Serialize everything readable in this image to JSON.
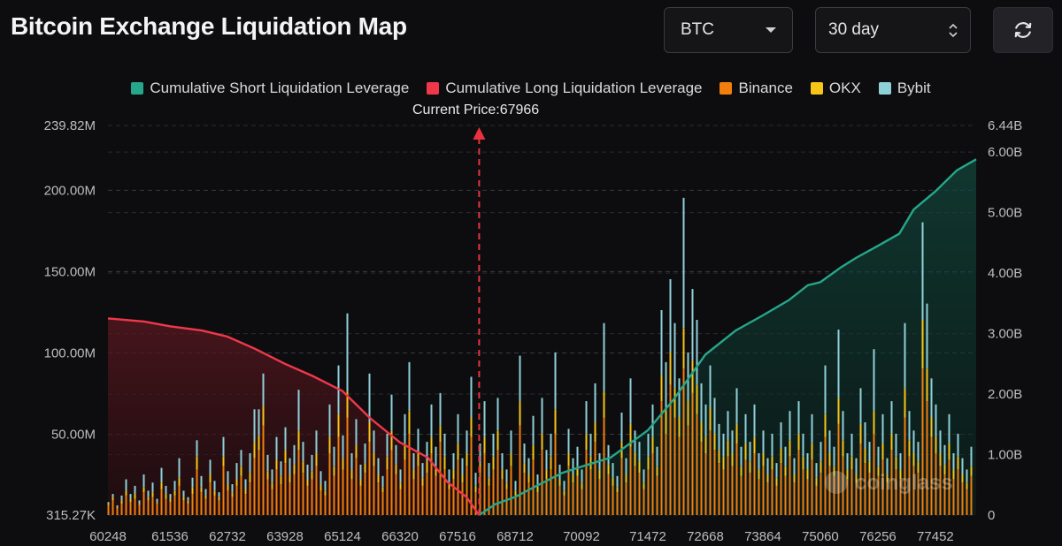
{
  "header": {
    "title": "Bitcoin Exchange Liquidation Map",
    "coin_select": "BTC",
    "period_select": "30 day"
  },
  "colors": {
    "short_cum": "#26a68a",
    "long_cum": "#f0384a",
    "binance": "#f27f0c",
    "okx": "#f5c518",
    "bybit": "#8fd0d8",
    "price_line": "#e8323f",
    "background": "#0d0d0f"
  },
  "chart_data": {
    "type": "bar",
    "title": "Bitcoin Exchange Liquidation Map",
    "current_price": 67966,
    "current_price_label": "Current Price:67966",
    "legend": [
      {
        "name": "Cumulative Short Liquidation Leverage",
        "color_key": "short_cum"
      },
      {
        "name": "Cumulative Long Liquidation Leverage",
        "color_key": "long_cum"
      },
      {
        "name": "Binance",
        "color_key": "binance"
      },
      {
        "name": "OKX",
        "color_key": "okx"
      },
      {
        "name": "Bybit",
        "color_key": "bybit"
      }
    ],
    "x_tick_labels": [
      "60248",
      "61536",
      "62732",
      "63928",
      "65124",
      "66320",
      "67516",
      "68712",
      "70092",
      "71472",
      "72668",
      "73864",
      "75060",
      "76256",
      "77452"
    ],
    "x_range": [
      60248,
      78300
    ],
    "y_left_ticks": [
      "315.27K",
      "50.00M",
      "100.00M",
      "150.00M",
      "200.00M",
      "239.82M"
    ],
    "y_left_values": [
      0.31527,
      50,
      100,
      150,
      200,
      239.82
    ],
    "y_left_range": [
      0.31527,
      239.82
    ],
    "y_left_unit": "M",
    "y_right_ticks": [
      "0",
      "1.00B",
      "2.00B",
      "3.00B",
      "4.00B",
      "5.00B",
      "6.00B",
      "6.44B"
    ],
    "y_right_values": [
      0,
      1,
      2,
      3,
      4,
      5,
      6,
      6.44
    ],
    "y_right_range": [
      0,
      6.44
    ],
    "y_right_unit": "B",
    "long_cumulative_B": [
      [
        60248,
        3.25
      ],
      [
        61000,
        3.2
      ],
      [
        61536,
        3.12
      ],
      [
        62200,
        3.05
      ],
      [
        62732,
        2.95
      ],
      [
        63300,
        2.75
      ],
      [
        63928,
        2.5
      ],
      [
        64500,
        2.3
      ],
      [
        65124,
        2.05
      ],
      [
        65700,
        1.6
      ],
      [
        66320,
        1.2
      ],
      [
        66900,
        0.95
      ],
      [
        67300,
        0.55
      ],
      [
        67700,
        0.3
      ],
      [
        67966,
        0
      ]
    ],
    "short_cumulative_B": [
      [
        67966,
        0
      ],
      [
        68300,
        0.18
      ],
      [
        68712,
        0.3
      ],
      [
        69200,
        0.5
      ],
      [
        69700,
        0.7
      ],
      [
        70092,
        0.8
      ],
      [
        70700,
        0.95
      ],
      [
        71472,
        1.4
      ],
      [
        72000,
        1.9
      ],
      [
        72668,
        2.65
      ],
      [
        73300,
        3.05
      ],
      [
        73864,
        3.3
      ],
      [
        74400,
        3.55
      ],
      [
        74800,
        3.8
      ],
      [
        75060,
        3.85
      ],
      [
        75500,
        4.1
      ],
      [
        75800,
        4.25
      ],
      [
        76256,
        4.45
      ],
      [
        76700,
        4.65
      ],
      [
        77000,
        5.05
      ],
      [
        77452,
        5.35
      ],
      [
        77900,
        5.7
      ],
      [
        78300,
        5.88
      ]
    ],
    "bar_notes": "Per-price stacked liquidation volume (Binance bottom, OKX middle, Bybit top). Heights estimated from image; tallest cluster near 71472 (~195M) and 77000 (~218M).",
    "bar_step": 40,
    "bars_M": [
      [
        6,
        1,
        1
      ],
      [
        9,
        2,
        2
      ],
      [
        4,
        1,
        1
      ],
      [
        7,
        2,
        3
      ],
      [
        12,
        3,
        7
      ],
      [
        8,
        2,
        3
      ],
      [
        10,
        3,
        5
      ],
      [
        6,
        1,
        2
      ],
      [
        14,
        3,
        8
      ],
      [
        9,
        2,
        4
      ],
      [
        11,
        3,
        6
      ],
      [
        7,
        1,
        2
      ],
      [
        16,
        4,
        9
      ],
      [
        10,
        3,
        5
      ],
      [
        8,
        2,
        3
      ],
      [
        12,
        3,
        6
      ],
      [
        18,
        5,
        12
      ],
      [
        9,
        2,
        4
      ],
      [
        7,
        2,
        2
      ],
      [
        13,
        4,
        6
      ],
      [
        28,
        8,
        10
      ],
      [
        14,
        3,
        7
      ],
      [
        10,
        2,
        4
      ],
      [
        20,
        5,
        9
      ],
      [
        12,
        3,
        6
      ],
      [
        9,
        2,
        3
      ],
      [
        30,
        6,
        12
      ],
      [
        15,
        4,
        8
      ],
      [
        11,
        3,
        5
      ],
      [
        18,
        4,
        10
      ],
      [
        24,
        6,
        10
      ],
      [
        13,
        3,
        6
      ],
      [
        20,
        6,
        12
      ],
      [
        35,
        10,
        20
      ],
      [
        40,
        9,
        16
      ],
      [
        55,
        12,
        20
      ],
      [
        22,
        5,
        10
      ],
      [
        16,
        4,
        8
      ],
      [
        28,
        6,
        14
      ],
      [
        19,
        5,
        9
      ],
      [
        32,
        8,
        14
      ],
      [
        20,
        5,
        10
      ],
      [
        25,
        6,
        12
      ],
      [
        40,
        12,
        25
      ],
      [
        26,
        7,
        12
      ],
      [
        18,
        4,
        9
      ],
      [
        22,
        5,
        10
      ],
      [
        30,
        8,
        14
      ],
      [
        15,
        4,
        8
      ],
      [
        12,
        3,
        6
      ],
      [
        38,
        10,
        20
      ],
      [
        24,
        6,
        12
      ],
      [
        48,
        14,
        30
      ],
      [
        28,
        7,
        14
      ],
      [
        60,
        16,
        48
      ],
      [
        22,
        6,
        10
      ],
      [
        35,
        8,
        16
      ],
      [
        18,
        4,
        9
      ],
      [
        26,
        6,
        12
      ],
      [
        45,
        12,
        30
      ],
      [
        30,
        8,
        14
      ],
      [
        20,
        5,
        10
      ],
      [
        14,
        3,
        7
      ],
      [
        28,
        8,
        14
      ],
      [
        40,
        12,
        22
      ],
      [
        25,
        6,
        12
      ],
      [
        16,
        4,
        8
      ],
      [
        34,
        10,
        18
      ],
      [
        50,
        14,
        30
      ],
      [
        22,
        6,
        10
      ],
      [
        30,
        8,
        15
      ],
      [
        18,
        5,
        9
      ],
      [
        26,
        7,
        12
      ],
      [
        38,
        10,
        20
      ],
      [
        24,
        6,
        12
      ],
      [
        45,
        10,
        20
      ],
      [
        28,
        8,
        14
      ],
      [
        16,
        4,
        8
      ],
      [
        22,
        6,
        10
      ],
      [
        34,
        10,
        18
      ],
      [
        20,
        5,
        10
      ],
      [
        30,
        8,
        14
      ],
      [
        48,
        12,
        25
      ],
      [
        14,
        4,
        8
      ],
      [
        26,
        6,
        12
      ],
      [
        38,
        10,
        22
      ],
      [
        18,
        5,
        9
      ],
      [
        28,
        8,
        14
      ],
      [
        40,
        12,
        20
      ],
      [
        22,
        6,
        10
      ],
      [
        16,
        4,
        8
      ],
      [
        30,
        8,
        14
      ],
      [
        12,
        3,
        6
      ],
      [
        55,
        15,
        28
      ],
      [
        26,
        6,
        12
      ],
      [
        20,
        5,
        10
      ],
      [
        34,
        9,
        18
      ],
      [
        14,
        4,
        7
      ],
      [
        40,
        10,
        22
      ],
      [
        22,
        6,
        12
      ],
      [
        28,
        8,
        14
      ],
      [
        50,
        15,
        35
      ],
      [
        18,
        4,
        9
      ],
      [
        12,
        3,
        6
      ],
      [
        30,
        8,
        15
      ],
      [
        20,
        5,
        10
      ],
      [
        24,
        6,
        12
      ],
      [
        16,
        4,
        8
      ],
      [
        40,
        10,
        20
      ],
      [
        28,
        8,
        14
      ],
      [
        45,
        12,
        24
      ],
      [
        22,
        6,
        10
      ],
      [
        60,
        16,
        42
      ],
      [
        25,
        6,
        12
      ],
      [
        18,
        5,
        9
      ],
      [
        14,
        3,
        7
      ],
      [
        35,
        10,
        18
      ],
      [
        20,
        5,
        10
      ],
      [
        42,
        14,
        28
      ],
      [
        30,
        8,
        14
      ],
      [
        26,
        7,
        12
      ],
      [
        16,
        4,
        8
      ],
      [
        28,
        8,
        14
      ],
      [
        38,
        10,
        20
      ],
      [
        24,
        6,
        12
      ],
      [
        70,
        16,
        40
      ],
      [
        50,
        14,
        30
      ],
      [
        80,
        20,
        45
      ],
      [
        60,
        18,
        40
      ],
      [
        48,
        12,
        24
      ],
      [
        90,
        25,
        80
      ],
      [
        55,
        15,
        30
      ],
      [
        75,
        20,
        44
      ],
      [
        62,
        18,
        40
      ],
      [
        45,
        12,
        24
      ],
      [
        38,
        10,
        20
      ],
      [
        52,
        14,
        26
      ],
      [
        40,
        10,
        22
      ],
      [
        32,
        8,
        16
      ],
      [
        28,
        8,
        14
      ],
      [
        36,
        10,
        18
      ],
      [
        30,
        8,
        14
      ],
      [
        44,
        12,
        22
      ],
      [
        24,
        6,
        12
      ],
      [
        34,
        10,
        18
      ],
      [
        26,
        7,
        12
      ],
      [
        38,
        10,
        20
      ],
      [
        22,
        6,
        10
      ],
      [
        30,
        8,
        14
      ],
      [
        20,
        5,
        10
      ],
      [
        28,
        8,
        14
      ],
      [
        18,
        5,
        9
      ],
      [
        32,
        9,
        16
      ],
      [
        24,
        6,
        12
      ],
      [
        36,
        10,
        18
      ],
      [
        20,
        5,
        10
      ],
      [
        40,
        10,
        20
      ],
      [
        28,
        8,
        14
      ],
      [
        22,
        6,
        10
      ],
      [
        34,
        10,
        18
      ],
      [
        18,
        5,
        9
      ],
      [
        26,
        7,
        12
      ],
      [
        48,
        14,
        30
      ],
      [
        30,
        8,
        14
      ],
      [
        24,
        6,
        12
      ],
      [
        56,
        16,
        42
      ],
      [
        36,
        10,
        18
      ],
      [
        22,
        6,
        10
      ],
      [
        28,
        8,
        14
      ],
      [
        20,
        5,
        10
      ],
      [
        44,
        12,
        22
      ],
      [
        32,
        9,
        16
      ],
      [
        26,
        7,
        12
      ],
      [
        50,
        14,
        38
      ],
      [
        24,
        6,
        12
      ],
      [
        34,
        10,
        18
      ],
      [
        20,
        5,
        10
      ],
      [
        40,
        10,
        20
      ],
      [
        28,
        8,
        14
      ],
      [
        22,
        6,
        10
      ],
      [
        60,
        18,
        40
      ],
      [
        36,
        10,
        18
      ],
      [
        30,
        8,
        14
      ],
      [
        26,
        7,
        12
      ],
      [
        90,
        30,
        60
      ],
      [
        70,
        20,
        40
      ],
      [
        48,
        12,
        24
      ],
      [
        38,
        10,
        20
      ],
      [
        30,
        8,
        14
      ],
      [
        25,
        6,
        12
      ],
      [
        34,
        10,
        18
      ],
      [
        22,
        6,
        10
      ],
      [
        28,
        8,
        14
      ],
      [
        20,
        5,
        10
      ],
      [
        16,
        4,
        8
      ],
      [
        24,
        6,
        12
      ]
    ]
  },
  "watermark": "coinglass"
}
